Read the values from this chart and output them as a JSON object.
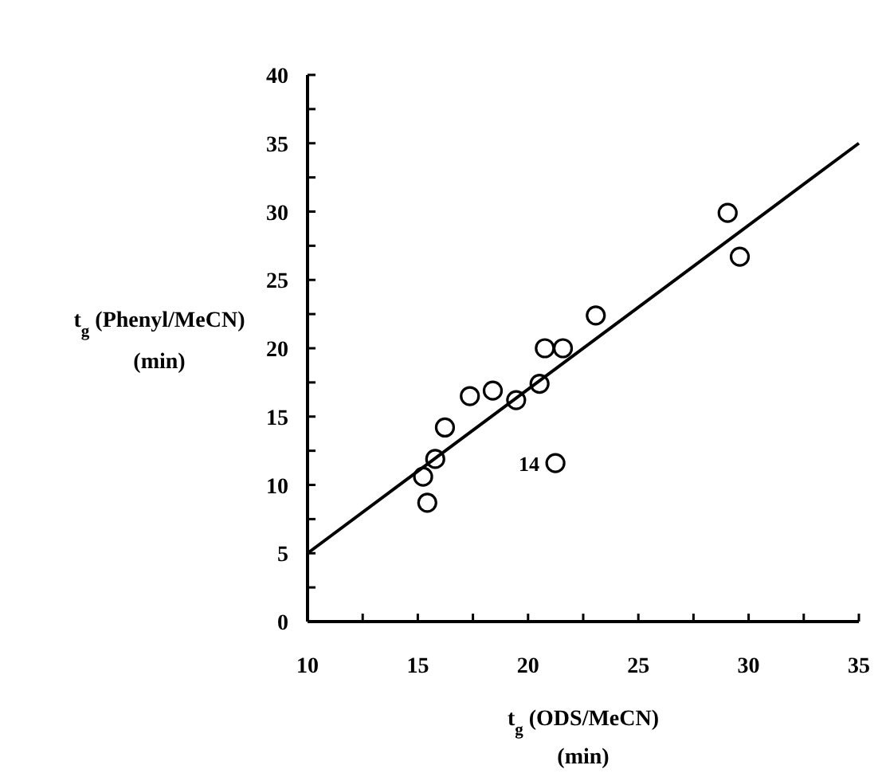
{
  "chart_data": {
    "type": "scatter",
    "xlabel": "t$_{g}$ (ODS/MeCN)\n(min)",
    "ylabel": "t$_{g}$ (Phenyl/MeCN)\n(min)",
    "xlim": [
      10,
      35
    ],
    "ylim": [
      0,
      40
    ],
    "xticks": [
      10,
      {
        "value": 12.5,
        "label": null
      },
      15,
      {
        "value": 17.5,
        "label": null
      },
      20,
      {
        "value": 22.5,
        "label": null
      },
      25,
      {
        "value": 27.5,
        "label": null
      },
      30,
      {
        "value": 32.5,
        "label": null
      },
      35
    ],
    "yticks": [
      0,
      {
        "value": 2.5,
        "label": null
      },
      5,
      {
        "value": 7.5,
        "label": null
      },
      10,
      {
        "value": 12.5,
        "label": null
      },
      15,
      {
        "value": 17.5,
        "label": null
      },
      20,
      {
        "value": 22.5,
        "label": null
      },
      25,
      {
        "value": 27.5,
        "label": null
      },
      30,
      {
        "value": 32.5,
        "label": null
      },
      35,
      {
        "value": 37.5,
        "label": null
      },
      40
    ],
    "grid": false,
    "series": [
      {
        "marker": "circle",
        "color": "#000000",
        "x": [
          15.24,
          15.43,
          15.79,
          16.23,
          17.36,
          18.4,
          19.46,
          20.52,
          20.76,
          21.58,
          21.24,
          23.07,
          29.05,
          29.6
        ],
        "values": [
          10.6,
          8.7,
          11.9,
          14.2,
          16.5,
          16.9,
          16.2,
          17.4,
          20.0,
          20.0,
          11.6,
          22.4,
          29.9,
          26.7
        ]
      },
      {
        "type": "line",
        "color": "#000000",
        "x": [
          10,
          35
        ],
        "values": [
          5,
          35
        ]
      }
    ],
    "annotations": [
      {
        "text": "14",
        "x": 21.24,
        "y": 11.6
      }
    ]
  }
}
